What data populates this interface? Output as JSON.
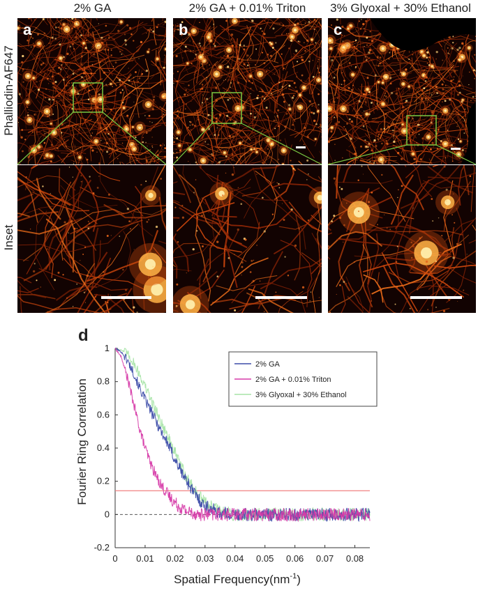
{
  "columns": [
    {
      "title": "2% GA",
      "letter": "a"
    },
    {
      "title": "2% GA + 0.01% Triton",
      "letter": "b"
    },
    {
      "title": "3% Glyoxal + 30% Ethanol",
      "letter": "c"
    }
  ],
  "rows": {
    "top_label": "Phalliodin-AF647",
    "bottom_label": "Inset"
  },
  "panel_d_letter": "d",
  "colors": {
    "ga": "#3b4ba8",
    "triton": "#d63aa8",
    "glyoxal": "#a6e4a6",
    "threshold": "#f08080",
    "zoom_box": "#7ac943"
  },
  "chart_data": {
    "type": "line",
    "xlabel": "Spatial Frequency(nm",
    "xlabel_sup": "-1",
    "xlabel_tail": ")",
    "ylabel": "Fourier Ring Correlation",
    "xlim": [
      0,
      0.085
    ],
    "ylim": [
      -0.2,
      1
    ],
    "xticks": [
      "0",
      "0.01",
      "0.02",
      "0.03",
      "0.04",
      "0.05",
      "0.06",
      "0.07",
      "0.08"
    ],
    "yticks": [
      "1",
      "0.8",
      "0.6",
      "0.4",
      "0.2",
      "0",
      "-0.2"
    ],
    "threshold": 0.143,
    "legend_position": "top-right",
    "series": [
      {
        "name": "2% GA",
        "color": "#3b4ba8",
        "x": [
          0,
          0.002,
          0.004,
          0.006,
          0.008,
          0.01,
          0.012,
          0.014,
          0.016,
          0.018,
          0.02,
          0.022,
          0.024,
          0.026,
          0.028,
          0.03,
          0.035,
          0.04,
          0.05,
          0.06,
          0.07,
          0.08,
          0.085
        ],
        "y": [
          1.0,
          0.98,
          0.93,
          0.86,
          0.77,
          0.69,
          0.62,
          0.55,
          0.48,
          0.41,
          0.33,
          0.26,
          0.2,
          0.14,
          0.09,
          0.05,
          0.01,
          0.0,
          0.0,
          0.0,
          0.0,
          0.0,
          0.0
        ]
      },
      {
        "name": "2% GA + 0.01% Triton",
        "color": "#d63aa8",
        "x": [
          0,
          0.002,
          0.004,
          0.006,
          0.008,
          0.01,
          0.012,
          0.014,
          0.016,
          0.018,
          0.02,
          0.022,
          0.024,
          0.026,
          0.028,
          0.03,
          0.035,
          0.04,
          0.05,
          0.06,
          0.07,
          0.08,
          0.085
        ],
        "y": [
          1.0,
          0.95,
          0.83,
          0.68,
          0.53,
          0.4,
          0.3,
          0.22,
          0.16,
          0.11,
          0.07,
          0.04,
          0.02,
          0.01,
          0.0,
          0.0,
          0.0,
          0.0,
          0.0,
          0.0,
          0.0,
          0.0,
          0.0
        ]
      },
      {
        "name": "3% Glyoxal + 30% Ethanol",
        "color": "#a6e4a6",
        "x": [
          0,
          0.002,
          0.004,
          0.006,
          0.008,
          0.01,
          0.012,
          0.014,
          0.016,
          0.018,
          0.02,
          0.022,
          0.024,
          0.026,
          0.028,
          0.03,
          0.035,
          0.04,
          0.05,
          0.06,
          0.07,
          0.08,
          0.085
        ],
        "y": [
          1.0,
          0.99,
          0.97,
          0.92,
          0.85,
          0.77,
          0.69,
          0.61,
          0.53,
          0.45,
          0.37,
          0.29,
          0.22,
          0.16,
          0.11,
          0.07,
          0.02,
          0.0,
          0.0,
          0.0,
          0.0,
          0.0,
          0.0
        ]
      }
    ]
  }
}
